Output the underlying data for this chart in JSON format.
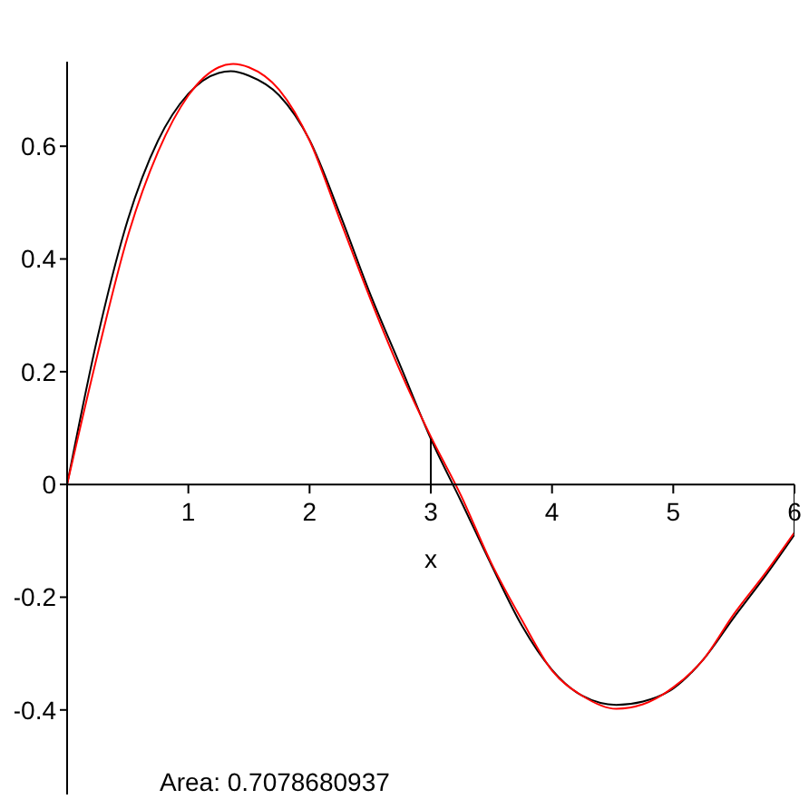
{
  "chart_data": {
    "type": "line",
    "xlabel": "x",
    "annotations": [
      "Area: 0.7078680937"
    ],
    "xlim": [
      0,
      6
    ],
    "ylim": [
      -0.55,
      0.75
    ],
    "xticks": [
      1,
      2,
      3,
      4,
      5,
      6
    ],
    "yticks": [
      -0.4,
      -0.2,
      0,
      0.2,
      0.4,
      0.6
    ],
    "grid": false,
    "marker": "none",
    "line_style": "solid",
    "series": [
      {
        "color": "#000000",
        "x": [
          0,
          0.25,
          0.5,
          0.75,
          1,
          1.25,
          1.35,
          1.5,
          1.75,
          2,
          2.25,
          2.5,
          2.75,
          3,
          3.25,
          3.5,
          3.75,
          4,
          4.25,
          4.53,
          4.75,
          5,
          5.25,
          5.5,
          5.75,
          6
        ],
        "values": [
          0,
          0.26,
          0.469,
          0.61,
          0.693,
          0.73,
          0.733,
          0.725,
          0.69,
          0.611,
          0.48,
          0.338,
          0.21,
          0.081,
          -0.03,
          -0.143,
          -0.25,
          -0.329,
          -0.375,
          -0.391,
          -0.385,
          -0.362,
          -0.31,
          -0.236,
          -0.165,
          -0.089
        ]
      },
      {
        "color": "#ff0000",
        "x": [
          0,
          0.25,
          0.5,
          0.75,
          1,
          1.25,
          1.37,
          1.5,
          1.75,
          2,
          2.25,
          2.5,
          2.75,
          3,
          3.25,
          3.5,
          3.75,
          4,
          4.25,
          4.53,
          4.75,
          5,
          5.25,
          5.5,
          5.75,
          6
        ],
        "values": [
          0,
          0.23,
          0.44,
          0.59,
          0.69,
          0.74,
          0.746,
          0.74,
          0.7,
          0.61,
          0.47,
          0.33,
          0.2,
          0.085,
          -0.02,
          -0.14,
          -0.24,
          -0.33,
          -0.375,
          -0.398,
          -0.39,
          -0.36,
          -0.31,
          -0.23,
          -0.16,
          -0.085
        ]
      },
      {
        "color": "#000000",
        "x": [
          3,
          3
        ],
        "values": [
          0,
          0.081
        ]
      },
      {
        "color": "#000000",
        "x": [
          6,
          6
        ],
        "values": [
          0,
          -0.089
        ]
      }
    ]
  }
}
